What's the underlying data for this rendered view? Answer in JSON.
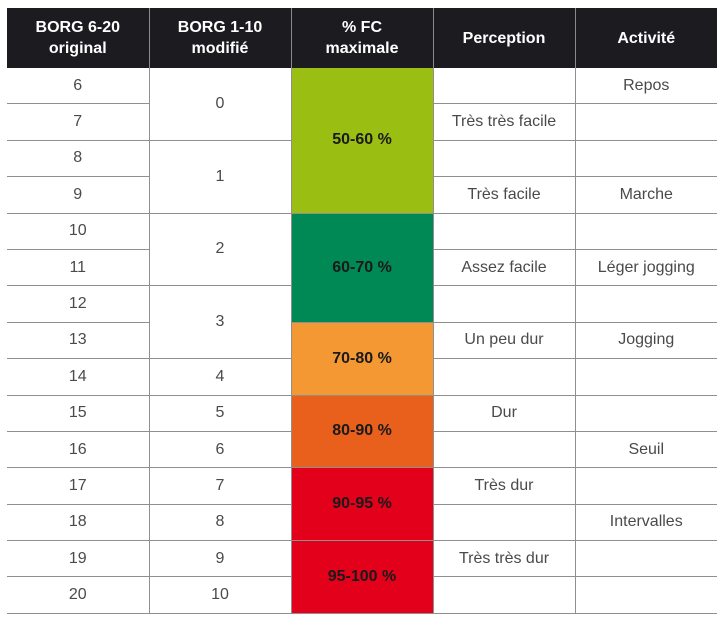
{
  "table": {
    "headers": [
      [
        "BORG 6-20",
        "original"
      ],
      [
        "BORG 1-10",
        "modifié"
      ],
      [
        "% FC",
        "maximale"
      ],
      [
        "Perception"
      ],
      [
        "Activité"
      ]
    ],
    "borg_original": [
      "6",
      "7",
      "8",
      "9",
      "10",
      "11",
      "12",
      "13",
      "14",
      "15",
      "16",
      "17",
      "18",
      "19",
      "20"
    ],
    "borg_modified": [
      {
        "value": "0",
        "rows": 2
      },
      {
        "value": "1",
        "rows": 2
      },
      {
        "value": "2",
        "rows": 2
      },
      {
        "value": "3",
        "rows": 2
      },
      {
        "value": "4",
        "rows": 1
      },
      {
        "value": "5",
        "rows": 1
      },
      {
        "value": "6",
        "rows": 1
      },
      {
        "value": "7",
        "rows": 1
      },
      {
        "value": "8",
        "rows": 1
      },
      {
        "value": "9",
        "rows": 1
      },
      {
        "value": "10",
        "rows": 1
      }
    ],
    "fc_zones": [
      {
        "label": "50-60 %",
        "rows": 4,
        "color": "#9bbe13"
      },
      {
        "label": "60-70 %",
        "rows": 3,
        "color": "#008855"
      },
      {
        "label": "70-80 %",
        "rows": 2,
        "color": "#f39833"
      },
      {
        "label": "80-90 %",
        "rows": 2,
        "color": "#e8601c"
      },
      {
        "label": "90-95 %",
        "rows": 2,
        "color": "#e2001a"
      },
      {
        "label": "95-100 %",
        "rows": 2,
        "color": "#e2001a"
      }
    ],
    "perception": [
      "",
      "Très très facile",
      "",
      "Très facile",
      "",
      "Assez facile",
      "",
      "Un peu dur",
      "",
      "Dur",
      "",
      "Très dur",
      "",
      "Très très dur",
      ""
    ],
    "activity": [
      "Repos",
      "",
      "",
      "Marche",
      "",
      "Léger jogging",
      "",
      "Jogging",
      "",
      "",
      "Seuil",
      "",
      "Intervalles",
      "",
      ""
    ]
  }
}
